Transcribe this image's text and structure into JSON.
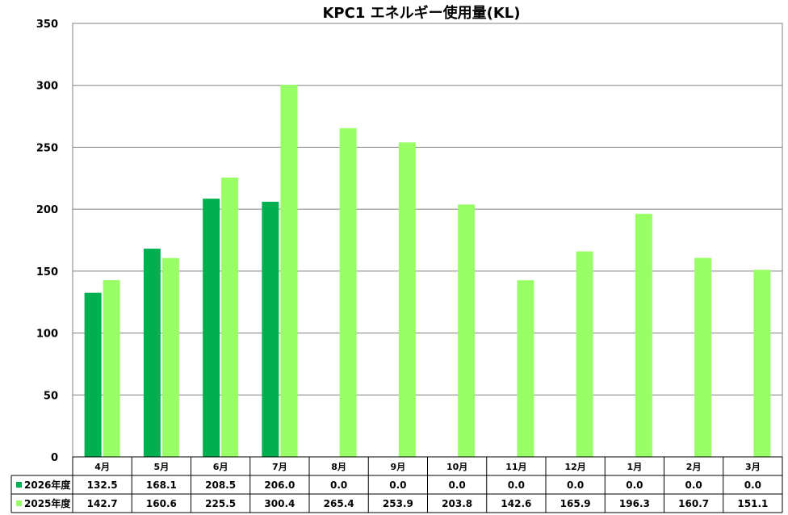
{
  "chart_data": {
    "type": "bar",
    "title": "KPC1 エネルギー使用量(KL)",
    "categories": [
      "4月",
      "5月",
      "6月",
      "7月",
      "8月",
      "9月",
      "10月",
      "11月",
      "12月",
      "1月",
      "2月",
      "3月"
    ],
    "series": [
      {
        "name": "2026年度",
        "color": "#00b050",
        "values": [
          132.5,
          168.1,
          208.5,
          206.0,
          0.0,
          0.0,
          0.0,
          0.0,
          0.0,
          0.0,
          0.0,
          0.0
        ],
        "labels": [
          "132.5",
          "168.1",
          "208.5",
          "206.0",
          "0.0",
          "0.0",
          "0.0",
          "0.0",
          "0.0",
          "0.0",
          "0.0",
          "0.0"
        ]
      },
      {
        "name": "2025年度",
        "color": "#99ff66",
        "values": [
          142.7,
          160.6,
          225.5,
          300.4,
          265.4,
          253.9,
          203.8,
          142.6,
          165.9,
          196.3,
          160.7,
          151.1
        ],
        "labels": [
          "142.7",
          "160.6",
          "225.5",
          "300.4",
          "265.4",
          "253.9",
          "203.8",
          "142.6",
          "165.9",
          "196.3",
          "160.7",
          "151.1"
        ]
      }
    ],
    "ylim": [
      0,
      350
    ],
    "yticks": [
      "0",
      "50",
      "100",
      "150",
      "200",
      "250",
      "300",
      "350"
    ],
    "grid": true,
    "legend_placement": "data-table"
  }
}
